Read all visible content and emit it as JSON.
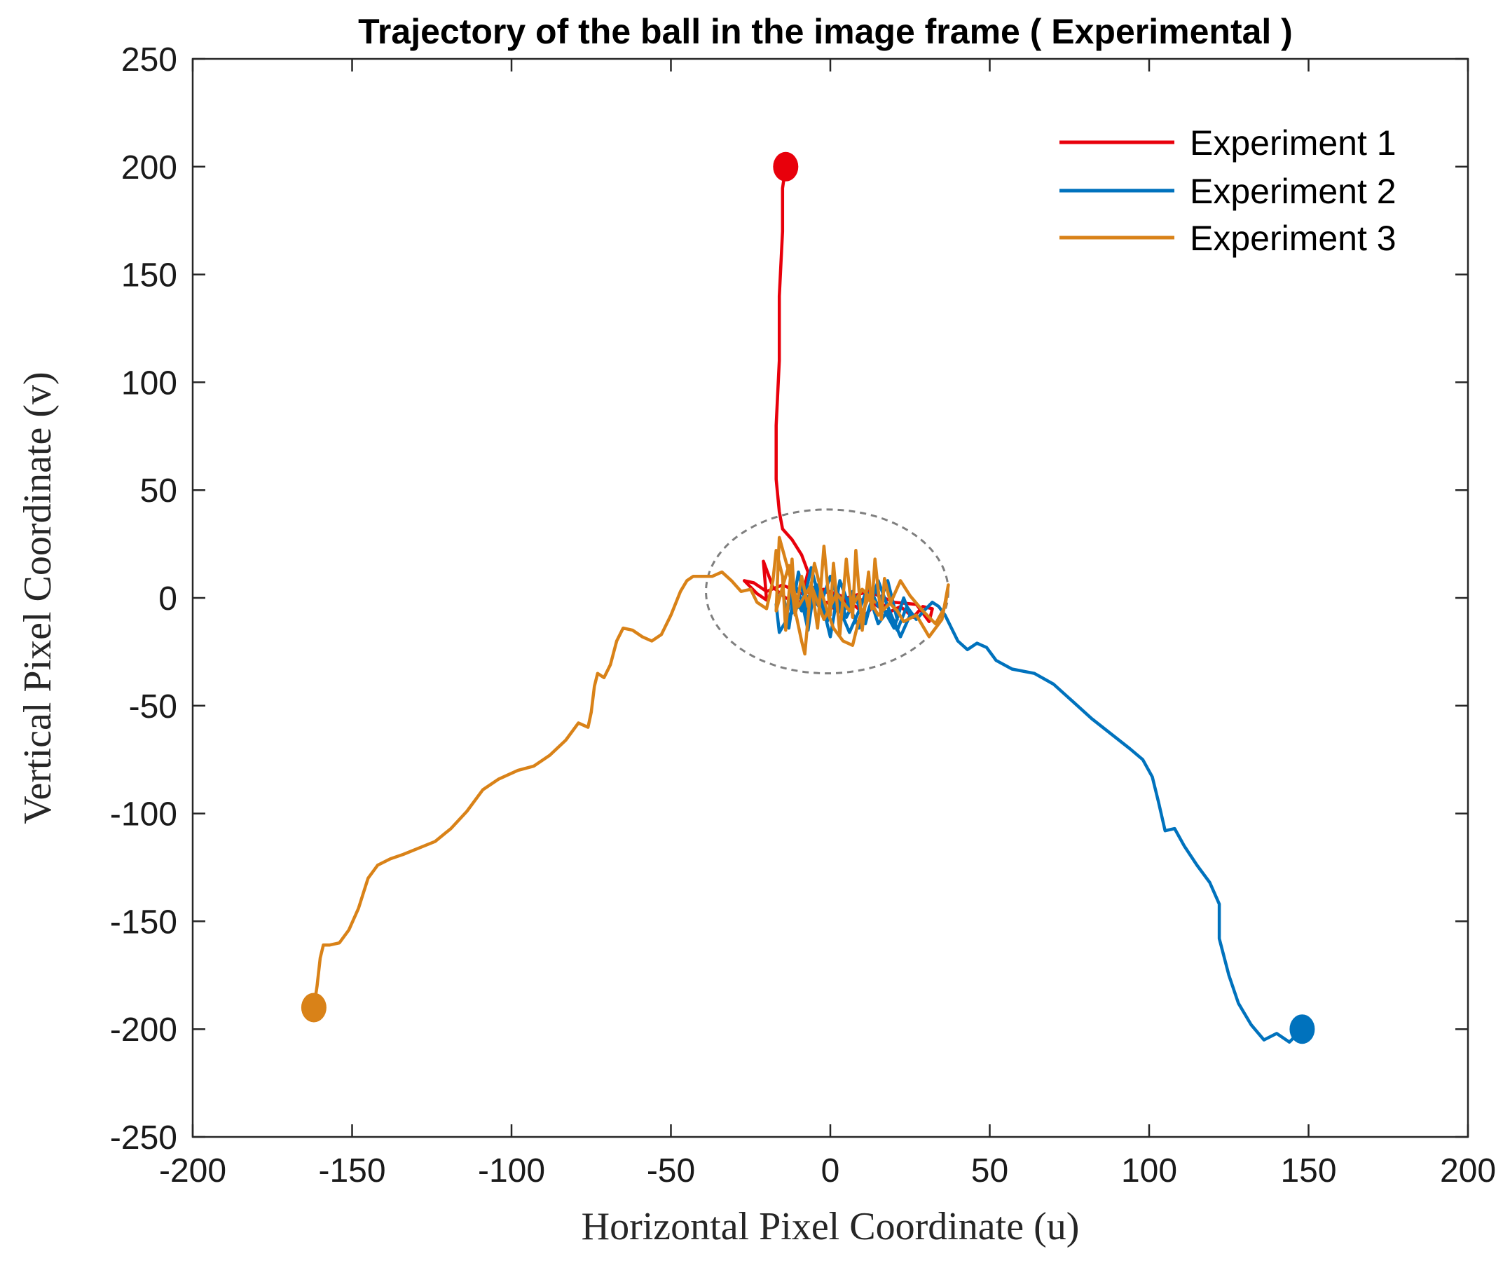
{
  "chart_data": {
    "type": "line",
    "title": "Trajectory of the ball in the image frame ( Experimental )",
    "xlabel": "Horizontal Pixel Coordinate (u)",
    "ylabel": "Vertical Pixel Coordinate (v)",
    "xlim": [
      -200,
      200
    ],
    "ylim": [
      -250,
      250
    ],
    "xticks": [
      -200,
      -150,
      -100,
      -50,
      0,
      50,
      100,
      150,
      200
    ],
    "yticks": [
      -250,
      -200,
      -150,
      -100,
      -50,
      0,
      50,
      100,
      150,
      200,
      250
    ],
    "grid": false,
    "legend_position": "top-right",
    "target_region": {
      "center": [
        -1,
        3
      ],
      "radius": 38,
      "style": "dashed",
      "color": "#7f7f7f"
    },
    "series": [
      {
        "name": "Experiment 1",
        "color": "#e8000b",
        "start_marker": [
          -14,
          200
        ],
        "points": [
          [
            -14,
            200
          ],
          [
            -15,
            190
          ],
          [
            -15,
            170
          ],
          [
            -16,
            140
          ],
          [
            -16,
            110
          ],
          [
            -17,
            80
          ],
          [
            -17,
            55
          ],
          [
            -16,
            40
          ],
          [
            -15,
            32
          ],
          [
            -12,
            27
          ],
          [
            -9,
            20
          ],
          [
            -7,
            12
          ],
          [
            -8,
            6
          ],
          [
            -6,
            2
          ],
          [
            -3,
            0
          ],
          [
            -5,
            -3
          ],
          [
            -1,
            -2
          ],
          [
            2,
            -6
          ],
          [
            4,
            -1
          ],
          [
            8,
            -4
          ],
          [
            11,
            -8
          ],
          [
            14,
            -3
          ],
          [
            18,
            -7
          ],
          [
            22,
            -4
          ],
          [
            26,
            -9
          ],
          [
            29,
            -4
          ],
          [
            32,
            -5
          ],
          [
            31,
            -11
          ],
          [
            27,
            -3
          ],
          [
            20,
            -2
          ],
          [
            12,
            3
          ],
          [
            5,
            0
          ],
          [
            -2,
            4
          ],
          [
            -9,
            2
          ],
          [
            -15,
            6
          ],
          [
            -20,
            3
          ],
          [
            -24,
            7
          ],
          [
            -27,
            8
          ],
          [
            -23,
            2
          ],
          [
            -20,
            -1
          ],
          [
            -21,
            17
          ],
          [
            -18,
            5
          ],
          [
            -14,
            0
          ],
          [
            -10,
            -2
          ],
          [
            -6,
            0
          ],
          [
            -2,
            3
          ],
          [
            3,
            1
          ],
          [
            7,
            -2
          ],
          [
            12,
            0
          ],
          [
            16,
            -4
          ],
          [
            20,
            -2
          ]
        ]
      },
      {
        "name": "Experiment 2",
        "color": "#0072bd",
        "start_marker": [
          148,
          -200
        ],
        "points": [
          [
            148,
            -200
          ],
          [
            144,
            -206
          ],
          [
            140,
            -202
          ],
          [
            136,
            -205
          ],
          [
            132,
            -198
          ],
          [
            128,
            -188
          ],
          [
            125,
            -175
          ],
          [
            122,
            -158
          ],
          [
            122,
            -142
          ],
          [
            119,
            -132
          ],
          [
            115,
            -124
          ],
          [
            111,
            -115
          ],
          [
            108,
            -107
          ],
          [
            105,
            -108
          ],
          [
            103,
            -95
          ],
          [
            101,
            -83
          ],
          [
            98,
            -75
          ],
          [
            94,
            -70
          ],
          [
            88,
            -63
          ],
          [
            82,
            -56
          ],
          [
            76,
            -48
          ],
          [
            70,
            -40
          ],
          [
            64,
            -35
          ],
          [
            57,
            -33
          ],
          [
            52,
            -29
          ],
          [
            49,
            -23
          ],
          [
            46,
            -21
          ],
          [
            43,
            -24
          ],
          [
            40,
            -20
          ],
          [
            38,
            -14
          ],
          [
            36,
            -8
          ],
          [
            34,
            -4
          ],
          [
            32,
            -2
          ],
          [
            30,
            -5
          ],
          [
            27,
            -10
          ],
          [
            24,
            -4
          ],
          [
            21,
            -15
          ],
          [
            18,
            -6
          ],
          [
            15,
            -12
          ],
          [
            12,
            2
          ],
          [
            9,
            -14
          ],
          [
            6,
            -4
          ],
          [
            3,
            8
          ],
          [
            0,
            -18
          ],
          [
            -2,
            -6
          ],
          [
            -5,
            5
          ],
          [
            -7,
            -15
          ],
          [
            -9,
            -1
          ],
          [
            -11,
            6
          ],
          [
            -13,
            -14
          ],
          [
            -15,
            4
          ],
          [
            -17,
            -3
          ],
          [
            -16,
            -16
          ],
          [
            -12,
            -6
          ],
          [
            -10,
            12
          ],
          [
            -7,
            -8
          ],
          [
            -4,
            6
          ],
          [
            -1,
            -11
          ],
          [
            2,
            4
          ],
          [
            5,
            -9
          ],
          [
            8,
            0
          ],
          [
            11,
            -12
          ],
          [
            14,
            5
          ],
          [
            17,
            -6
          ],
          [
            20,
            -14
          ],
          [
            23,
            0
          ],
          [
            25,
            -8
          ],
          [
            22,
            -18
          ],
          [
            18,
            -4
          ],
          [
            15,
            8
          ],
          [
            11,
            -10
          ],
          [
            7,
            3
          ],
          [
            4,
            -7
          ],
          [
            0,
            10
          ],
          [
            -3,
            -3
          ],
          [
            -6,
            14
          ],
          [
            -9,
            -6
          ],
          [
            -12,
            3
          ],
          [
            -14,
            -10
          ],
          [
            -10,
            -4
          ],
          [
            -6,
            2
          ],
          [
            -2,
            -8
          ],
          [
            2,
            -2
          ],
          [
            6,
            -16
          ],
          [
            9,
            -6
          ],
          [
            12,
            6
          ],
          [
            15,
            -4
          ],
          [
            18,
            8
          ],
          [
            21,
            -10
          ]
        ]
      },
      {
        "name": "Experiment 3",
        "color": "#d98218",
        "start_marker": [
          -162,
          -190
        ],
        "points": [
          [
            -162,
            -190
          ],
          [
            -161,
            -180
          ],
          [
            -160,
            -167
          ],
          [
            -159,
            -161
          ],
          [
            -157,
            -161
          ],
          [
            -154,
            -160
          ],
          [
            -151,
            -154
          ],
          [
            -148,
            -144
          ],
          [
            -145,
            -130
          ],
          [
            -142,
            -124
          ],
          [
            -138,
            -121
          ],
          [
            -134,
            -119
          ],
          [
            -129,
            -116
          ],
          [
            -124,
            -113
          ],
          [
            -119,
            -107
          ],
          [
            -114,
            -99
          ],
          [
            -109,
            -89
          ],
          [
            -104,
            -84
          ],
          [
            -98,
            -80
          ],
          [
            -93,
            -78
          ],
          [
            -88,
            -73
          ],
          [
            -83,
            -66
          ],
          [
            -79,
            -58
          ],
          [
            -76,
            -60
          ],
          [
            -75,
            -53
          ],
          [
            -74,
            -41
          ],
          [
            -73,
            -35
          ],
          [
            -71,
            -37
          ],
          [
            -69,
            -31
          ],
          [
            -67,
            -20
          ],
          [
            -65,
            -14
          ],
          [
            -62,
            -15
          ],
          [
            -59,
            -18
          ],
          [
            -56,
            -20
          ],
          [
            -53,
            -17
          ],
          [
            -50,
            -8
          ],
          [
            -47,
            3
          ],
          [
            -45,
            8
          ],
          [
            -43,
            10
          ],
          [
            -40,
            10
          ],
          [
            -37,
            10
          ],
          [
            -34,
            12
          ],
          [
            -31,
            8
          ],
          [
            -28,
            3
          ],
          [
            -25,
            4
          ],
          [
            -23,
            -2
          ],
          [
            -20,
            -5
          ],
          [
            -18,
            8
          ],
          [
            -17,
            22
          ],
          [
            -15,
            10
          ],
          [
            -14,
            -15
          ],
          [
            -12,
            18
          ],
          [
            -11,
            -6
          ],
          [
            -9,
            -20
          ],
          [
            -8,
            -26
          ],
          [
            -6,
            7
          ],
          [
            -4,
            -14
          ],
          [
            -2,
            24
          ],
          [
            0,
            -8
          ],
          [
            1,
            16
          ],
          [
            3,
            -17
          ],
          [
            5,
            18
          ],
          [
            7,
            -9
          ],
          [
            8,
            22
          ],
          [
            10,
            -15
          ],
          [
            12,
            12
          ],
          [
            13,
            -5
          ],
          [
            14,
            18
          ],
          [
            16,
            -10
          ],
          [
            17,
            9
          ],
          [
            19,
            -3
          ],
          [
            21,
            -6
          ],
          [
            23,
            -11
          ],
          [
            27,
            -8
          ],
          [
            31,
            -18
          ],
          [
            35,
            -10
          ],
          [
            37,
            6
          ],
          [
            36,
            -4
          ],
          [
            33,
            -12
          ],
          [
            29,
            -6
          ],
          [
            25,
            1
          ],
          [
            22,
            8
          ],
          [
            19,
            -2
          ],
          [
            15,
            -8
          ],
          [
            12,
            0
          ],
          [
            9,
            -10
          ],
          [
            7,
            -22
          ],
          [
            4,
            -20
          ],
          [
            1,
            -14
          ],
          [
            -1,
            -6
          ],
          [
            -3,
            4
          ],
          [
            -5,
            16
          ],
          [
            -7,
            -4
          ],
          [
            -9,
            10
          ],
          [
            -11,
            -8
          ],
          [
            -13,
            15
          ],
          [
            -15,
            5
          ],
          [
            -17,
            -6
          ],
          [
            -16,
            28
          ],
          [
            -13,
            12
          ],
          [
            -10,
            -4
          ],
          [
            -6,
            6
          ],
          [
            -2,
            -10
          ],
          [
            2,
            2
          ],
          [
            6,
            -6
          ],
          [
            10,
            4
          ],
          [
            14,
            -2
          ]
        ]
      }
    ]
  }
}
